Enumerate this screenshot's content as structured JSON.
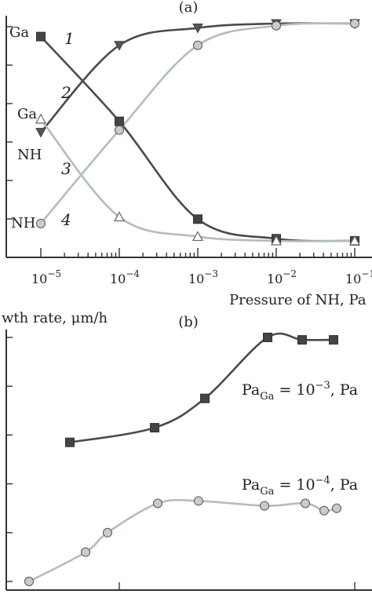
{
  "colors": {
    "dark": "#4a4a4a",
    "light": "#b2bdbd",
    "axis": "#333333"
  },
  "chart_data": [
    {
      "type": "line",
      "panel_label": "(a)",
      "xlabel": "Pressure of NH, Pa",
      "x_scale": "log",
      "x_ticks": [
        1e-05,
        0.0001,
        0.001,
        0.01,
        0.1
      ],
      "x_tick_labels": [
        {
          "base": "10",
          "exp": "−5"
        },
        {
          "base": "10",
          "exp": "−4"
        },
        {
          "base": "10",
          "exp": "−3"
        },
        {
          "base": "10",
          "exp": "−2"
        },
        {
          "base": "10",
          "exp": "−1"
        }
      ],
      "y_tick_count": 6,
      "left_labels": [
        "Ga",
        "Ga",
        "NH",
        "NH"
      ],
      "series": [
        {
          "name": "1",
          "marker": "square-filled",
          "color": "#4a4a4a",
          "points": [
            [
              1e-05,
              0.94
            ],
            [
              0.0001,
              0.55
            ],
            [
              0.001,
              0.1
            ],
            [
              0.01,
              0.01
            ],
            [
              0.1,
              0.0
            ]
          ]
        },
        {
          "name": "2",
          "marker": "triangle-down-filled",
          "color": "#4a4a4a",
          "points": [
            [
              1e-05,
              0.5
            ],
            [
              0.0001,
              0.9
            ],
            [
              0.001,
              0.98
            ],
            [
              0.01,
              1.0
            ],
            [
              0.1,
              1.0
            ]
          ]
        },
        {
          "name": "3",
          "marker": "triangle-open",
          "color": "#b2bdbd",
          "points": [
            [
              1e-05,
              0.56
            ],
            [
              0.0001,
              0.11
            ],
            [
              0.001,
              0.02
            ],
            [
              0.01,
              0.0
            ],
            [
              0.1,
              0.0
            ]
          ]
        },
        {
          "name": "4",
          "marker": "circle-gray",
          "color": "#b2bdbd",
          "points": [
            [
              1e-05,
              0.08
            ],
            [
              0.0001,
              0.51
            ],
            [
              0.001,
              0.9
            ],
            [
              0.01,
              0.99
            ],
            [
              0.1,
              1.0
            ]
          ]
        }
      ]
    },
    {
      "type": "line",
      "panel_label": "(b)",
      "ylabel": "wth rate, μm/h",
      "y_tick_count": 6,
      "series": [
        {
          "name": "Pa_Ga = 10^−3, Pa",
          "label_main": "Pa",
          "label_sub": "Ga",
          "label_rest": " = 10",
          "label_exp": "−3",
          "label_unit": ", Pa",
          "marker": "square-filled",
          "color": "#4a4a4a",
          "points": [
            [
              0.13,
              0.57
            ],
            [
              0.4,
              0.63
            ],
            [
              0.56,
              0.75
            ],
            [
              0.76,
              1.0
            ],
            [
              0.87,
              0.99
            ],
            [
              0.97,
              0.99
            ]
          ]
        },
        {
          "name": "Pa_Ga = 10^−4, Pa",
          "label_main": "Pa",
          "label_sub": "Ga",
          "label_rest": " = 10",
          "label_exp": "−4",
          "label_unit": ", Pa",
          "marker": "circle-gray",
          "color": "#b2bdbd",
          "points": [
            [
              0.0,
              0.0
            ],
            [
              0.18,
              0.12
            ],
            [
              0.25,
              0.2
            ],
            [
              0.41,
              0.32
            ],
            [
              0.54,
              0.33
            ],
            [
              0.75,
              0.31
            ],
            [
              0.88,
              0.32
            ],
            [
              0.94,
              0.29
            ],
            [
              0.98,
              0.3
            ]
          ]
        }
      ]
    }
  ]
}
